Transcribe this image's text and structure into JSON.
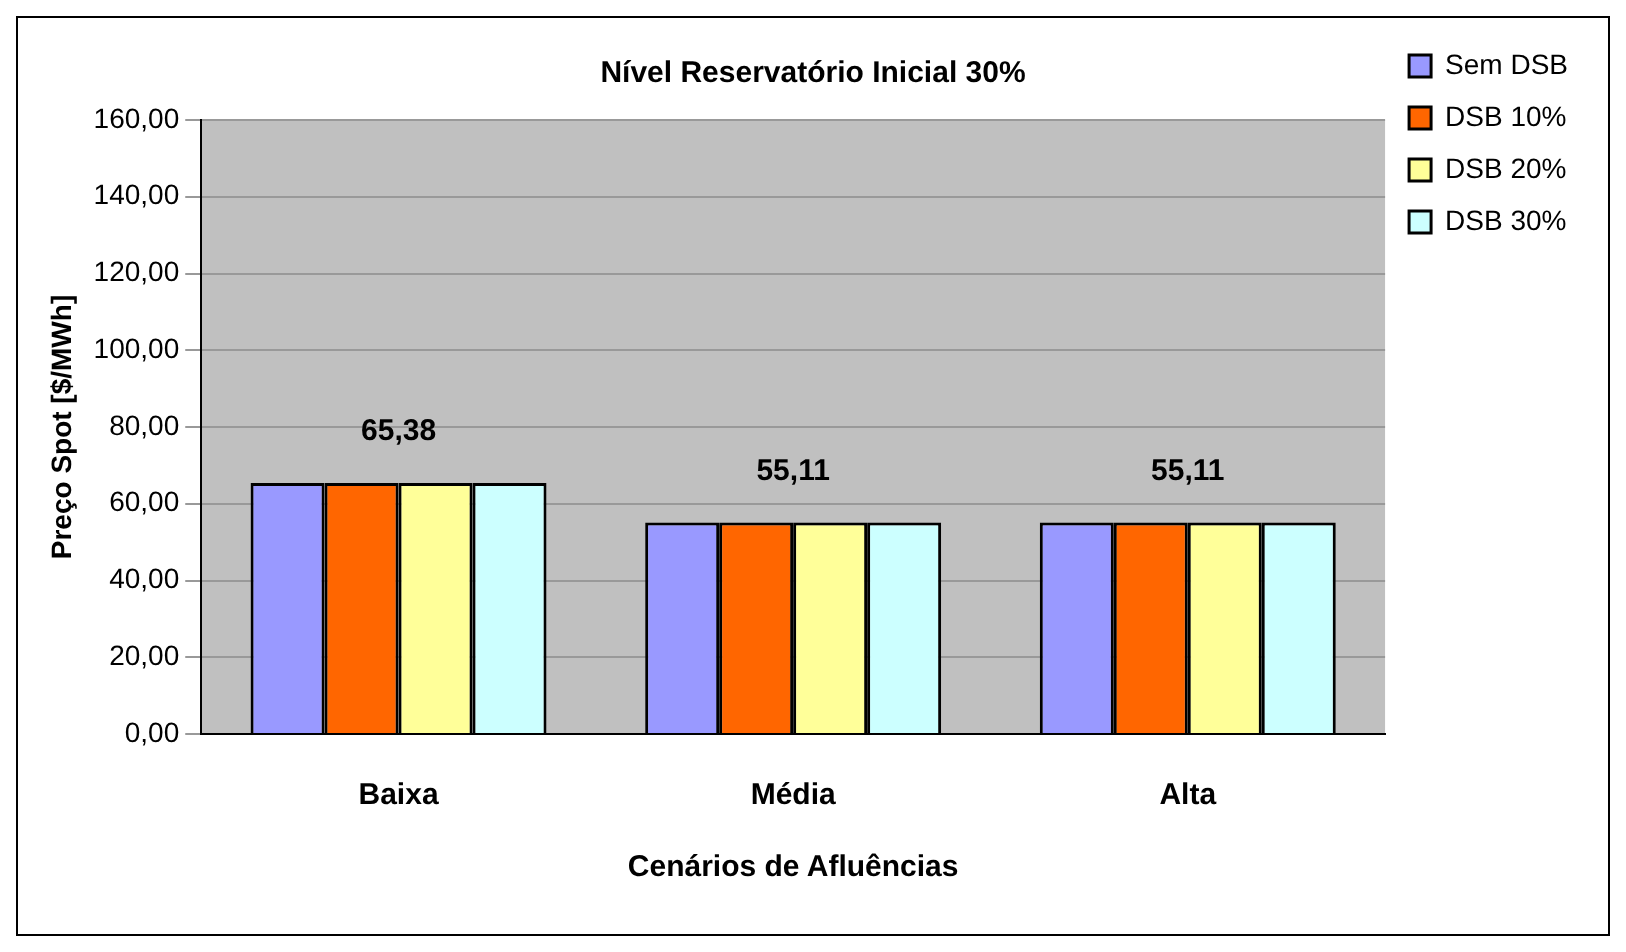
{
  "chart_data": {
    "type": "bar",
    "title": "Nível Reservatório Inicial 30%",
    "xlabel": "Cenários de Afluências",
    "ylabel": "Preço Spot [$/MWh]",
    "categories": [
      "Baixa",
      "Média",
      "Alta"
    ],
    "series": [
      {
        "name": "Sem DSB",
        "color": "#9999ff",
        "values": [
          65.38,
          55.11,
          55.11
        ]
      },
      {
        "name": "DSB 10%",
        "color": "#ff6600",
        "values": [
          65.38,
          55.11,
          55.11
        ]
      },
      {
        "name": "DSB 20%",
        "color": "#ffff99",
        "values": [
          65.38,
          55.11,
          55.11
        ]
      },
      {
        "name": "DSB 30%",
        "color": "#ccffff",
        "values": [
          65.38,
          55.11,
          55.11
        ]
      }
    ],
    "annotations": [
      {
        "text": "65,38",
        "x": "Baixa",
        "y": 65.38
      },
      {
        "text": "55,11",
        "x": "Média",
        "y": 55.11
      },
      {
        "text": "55,11",
        "x": "Alta",
        "y": 55.11
      }
    ],
    "ylim": [
      0,
      160
    ],
    "yticks": [
      {
        "value": 0,
        "label": "0,00"
      },
      {
        "value": 20,
        "label": "20,00"
      },
      {
        "value": 40,
        "label": "40,00"
      },
      {
        "value": 60,
        "label": "60,00"
      },
      {
        "value": 80,
        "label": "80,00"
      },
      {
        "value": 100,
        "label": "100,00"
      },
      {
        "value": 120,
        "label": "120,00"
      },
      {
        "value": 140,
        "label": "140,00"
      },
      {
        "value": 160,
        "label": "160,00"
      }
    ],
    "grid": "y",
    "legend": "right"
  }
}
